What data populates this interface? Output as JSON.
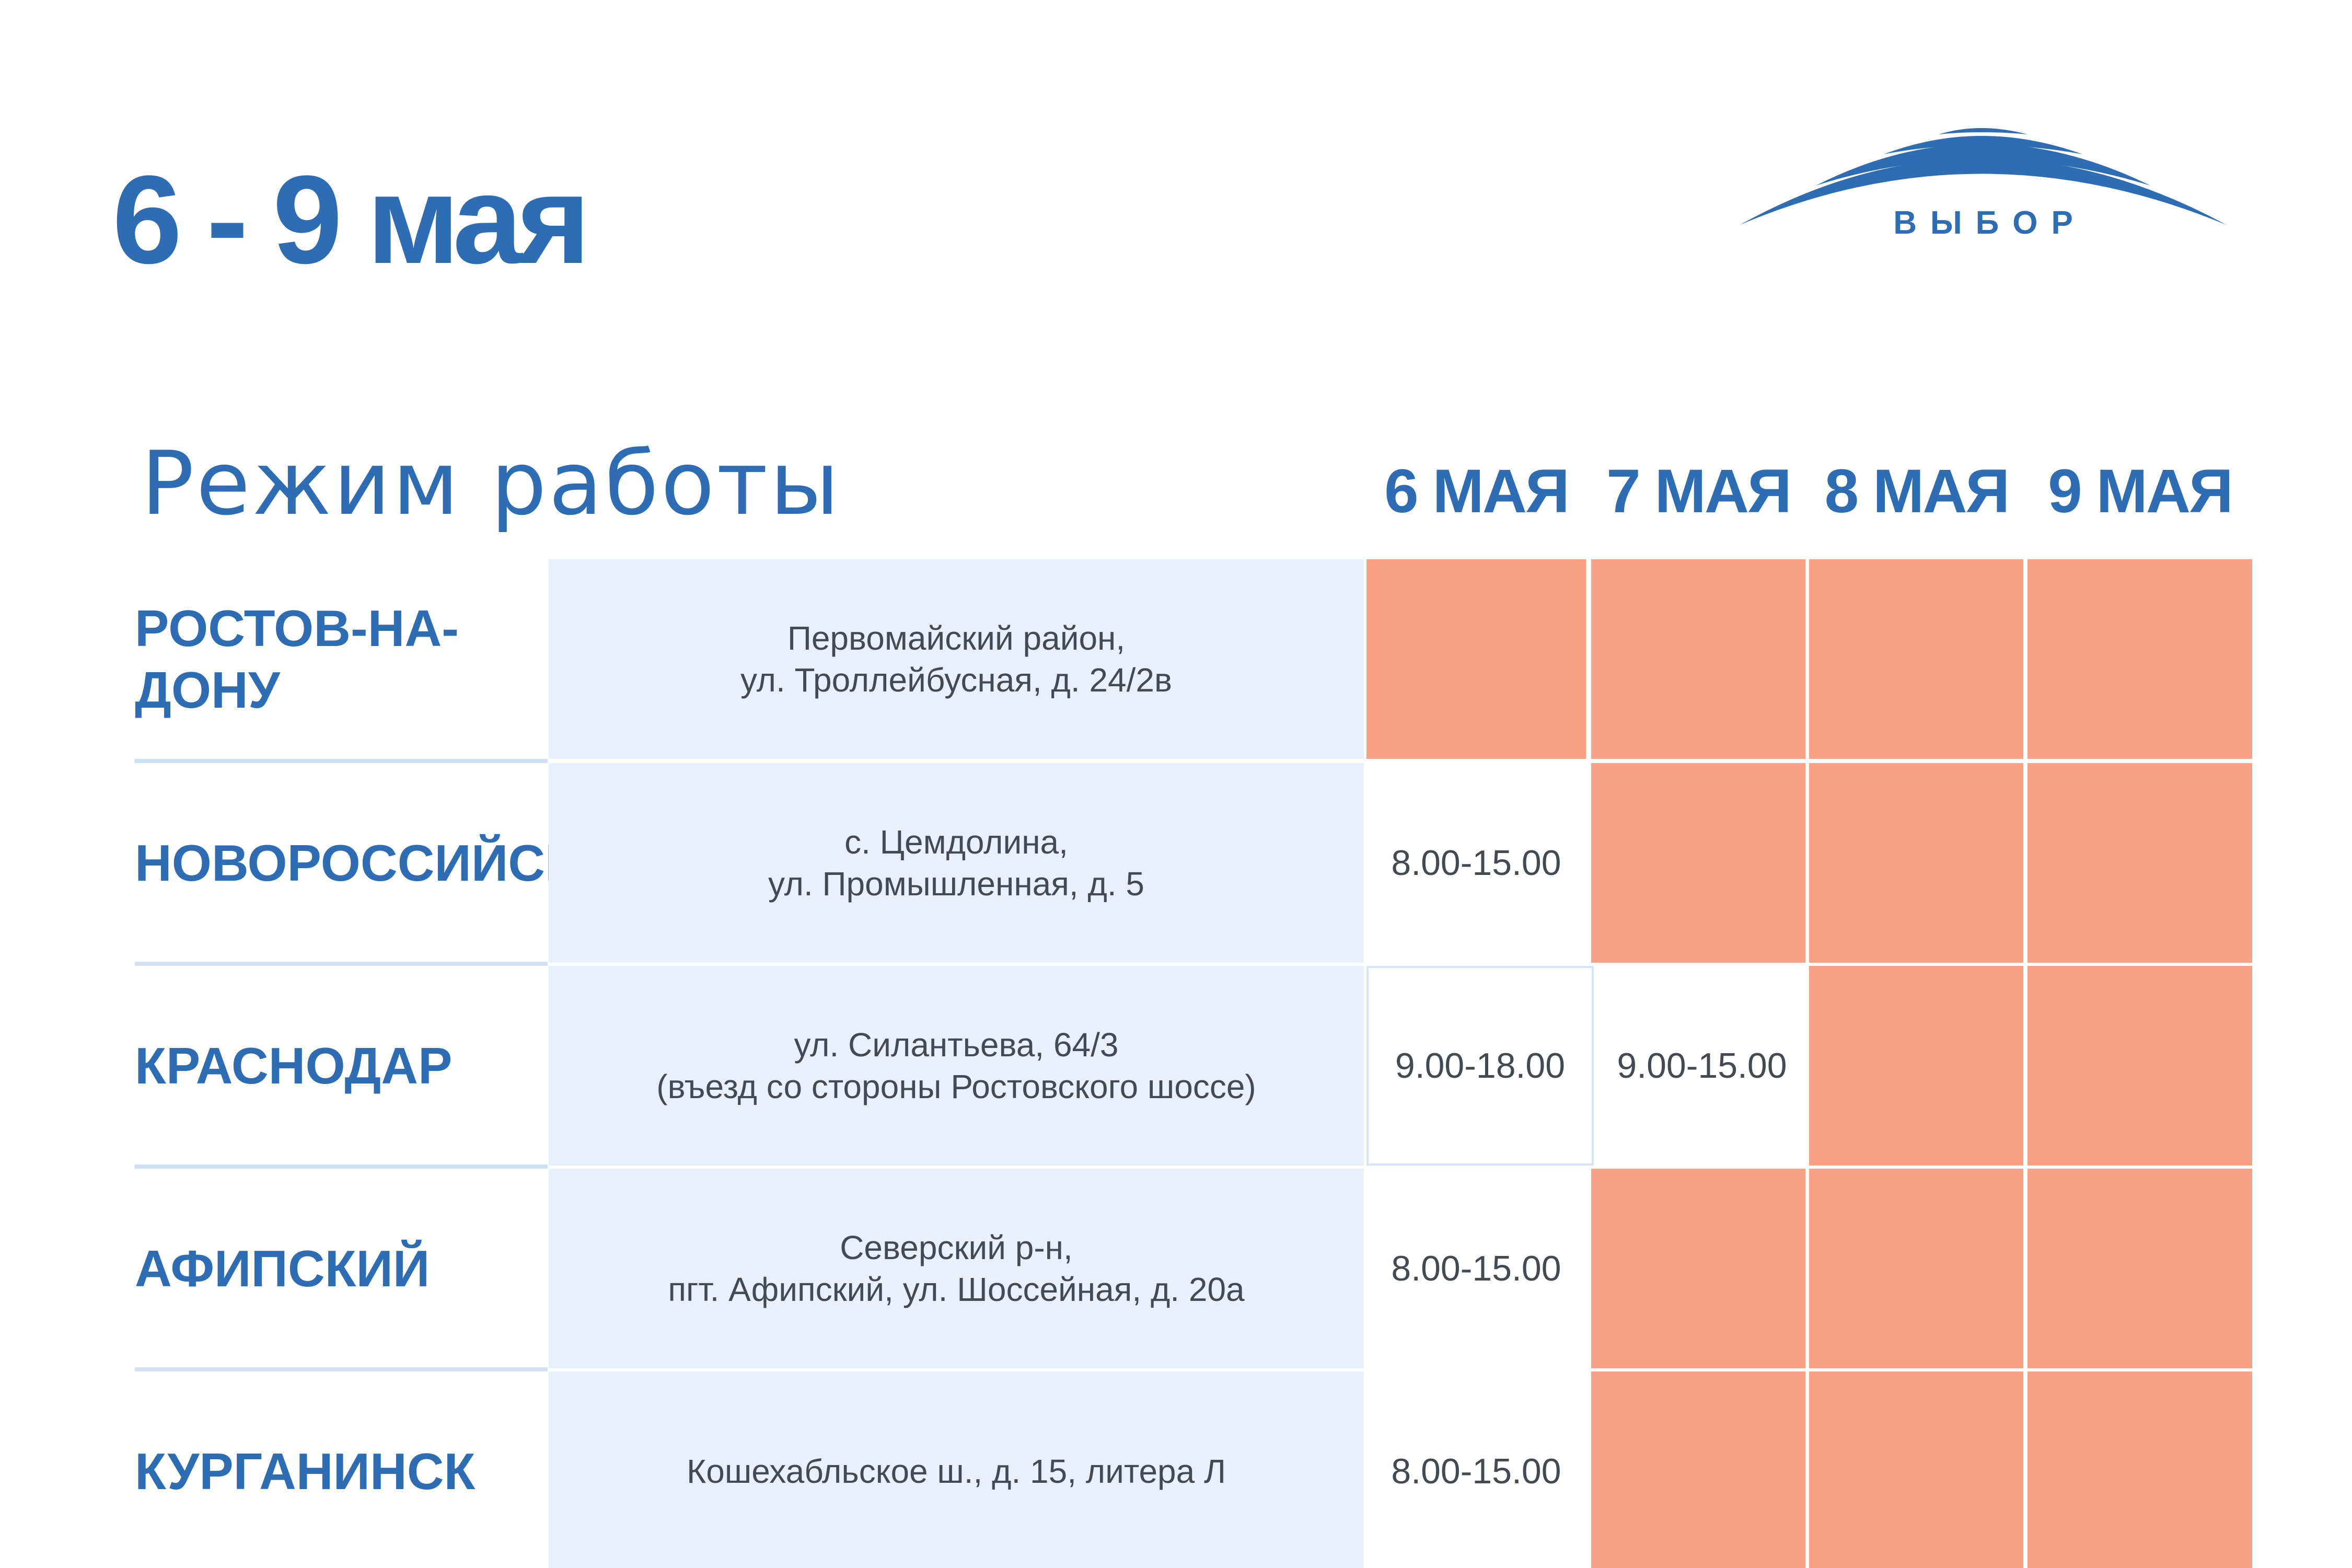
{
  "title": "6 - 9 мая",
  "logo": {
    "text": "ВЫБОР"
  },
  "section_heading": "Режим работы",
  "days": [
    "6 МАЯ",
    "7 МАЯ",
    "8 МАЯ",
    "9 МАЯ"
  ],
  "colors": {
    "brand_blue": "#2e6db4",
    "closed": "#f9a185",
    "address_bg": "#e8f1fb"
  },
  "rows": [
    {
      "city": "РОСТОВ-НА-\nДОНУ",
      "address": "Первомайский район,\nул. Троллейбусная, д. 24/2в",
      "hours": [
        "",
        "",
        "",
        ""
      ]
    },
    {
      "city": "НОВОРОССИЙСК",
      "address": "с. Цемдолина,\nул. Промышленная, д. 5",
      "hours": [
        "8.00-15.00",
        "",
        "",
        ""
      ]
    },
    {
      "city": "КРАСНОДАР",
      "address": "ул. Силантьева, 64/3\n(въезд со стороны Ростовского шоссе)",
      "hours": [
        "9.00-18.00",
        "9.00-15.00",
        "",
        ""
      ]
    },
    {
      "city": "АФИПСКИЙ",
      "address": "Северский р-н,\nпгт. Афипский, ул. Шоссейная, д. 20а",
      "hours": [
        "8.00-15.00",
        "",
        "",
        ""
      ]
    },
    {
      "city": "КУРГАНИНСК",
      "address": "Кошехабльское ш., д. 15, литера Л",
      "hours": [
        "8.00-15.00",
        "",
        "",
        ""
      ]
    }
  ]
}
